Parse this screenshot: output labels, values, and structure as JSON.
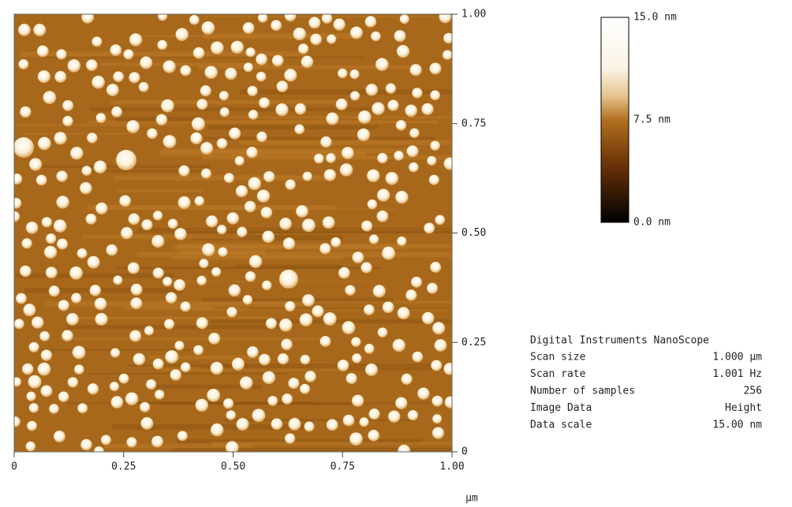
{
  "x_axis": {
    "ticks": [
      "0",
      "0.25",
      "0.50",
      "0.75",
      "1.00"
    ],
    "unit": "µm"
  },
  "y_axis": {
    "ticks": [
      "1.00",
      "0.75",
      "0.50",
      "0.25",
      "0"
    ]
  },
  "color_scale": {
    "labels": [
      "15.0 nm",
      "7.5 nm",
      "0.0 nm"
    ]
  },
  "info": {
    "title": "Digital Instruments NanoScope",
    "rows": [
      [
        "Scan size",
        "1.000 µm"
      ],
      [
        "Scan rate",
        "1.001 Hz"
      ],
      [
        "Number of samples",
        "256"
      ],
      [
        "Image Data",
        "Height"
      ],
      [
        "Data scale",
        "15.00 nm"
      ]
    ]
  }
}
